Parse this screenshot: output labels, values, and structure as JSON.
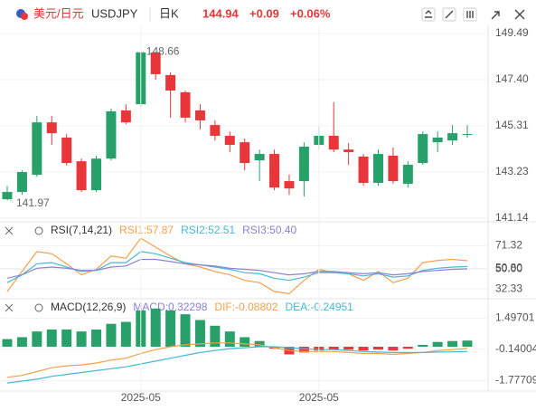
{
  "header": {
    "symbol_cn": "美元/日元",
    "symbol": "USDJPY",
    "period": "日K",
    "price": "144.94",
    "change": "+0.09",
    "change_pct": "+0.06%"
  },
  "chart_data": [
    {
      "type": "candlestick",
      "open": [
        141.99,
        142.32,
        143.1,
        145.47,
        144.78,
        143.71,
        142.4,
        143.83,
        146.01,
        146.29,
        148.63,
        147.61,
        146.83,
        146.01,
        145.35,
        144.86,
        144.57,
        143.75,
        144.04,
        142.81,
        142.81,
        144.45,
        144.86,
        144.24,
        143.92,
        142.73,
        143.96,
        142.69,
        143.63,
        144.57,
        144.65,
        144.92
      ],
      "high": [
        142.6,
        143.3,
        145.76,
        145.76,
        144.94,
        143.83,
        143.96,
        146.09,
        146.29,
        148.66,
        148.64,
        147.73,
        146.91,
        146.29,
        145.56,
        145.06,
        144.74,
        144.24,
        144.24,
        143.1,
        144.57,
        145.27,
        146.38,
        144.53,
        144.04,
        144.24,
        144.33,
        143.71,
        145.06,
        145.06,
        145.35,
        145.35
      ],
      "low": [
        141.97,
        142.19,
        143.01,
        144.45,
        143.51,
        142.32,
        142.32,
        143.75,
        145.39,
        146.17,
        147.4,
        145.68,
        145.47,
        145.15,
        144.65,
        144.12,
        143.3,
        142.81,
        142.4,
        142.19,
        142.11,
        144.24,
        144.12,
        143.55,
        142.6,
        142.6,
        142.69,
        142.52,
        143.55,
        144.12,
        144.45,
        144.78
      ],
      "close": [
        142.32,
        143.22,
        145.47,
        144.98,
        143.63,
        142.4,
        143.83,
        145.97,
        145.47,
        148.63,
        147.65,
        146.91,
        145.68,
        145.56,
        144.86,
        144.45,
        143.63,
        144.04,
        142.52,
        142.48,
        144.37,
        144.86,
        144.24,
        144.12,
        142.73,
        144.04,
        142.81,
        143.55,
        144.94,
        144.78,
        144.98,
        144.94
      ],
      "up_color": "#27a06a",
      "down_color": "#e8363a",
      "ylim": [
        140.97,
        149.86
      ],
      "yticks": [
        149.49,
        {
          "value": 147.4,
          "label": "147.40"
        },
        145.31,
        143.23,
        141.14
      ],
      "annotations": [
        {
          "value": 148.66,
          "label": "148.66"
        },
        {
          "value": 141.97,
          "label": "141.97"
        }
      ],
      "grid": true
    },
    {
      "type": "line",
      "title": "RSI(7,14,21)",
      "series": [
        {
          "name": "RSI1:57.87",
          "color": "#f5a04a",
          "values": [
            30,
            48,
            66,
            64,
            55,
            45,
            50,
            62,
            60,
            78,
            70,
            62,
            55,
            52,
            48,
            45,
            40,
            38,
            30,
            28,
            40,
            50,
            47,
            46,
            40,
            48,
            38,
            42,
            56,
            58,
            59,
            57.87
          ]
        },
        {
          "name": "RSI2:52.51",
          "color": "#45b8d6",
          "values": [
            38,
            45,
            55,
            56,
            52,
            48,
            49,
            56,
            56,
            66,
            64,
            60,
            56,
            54,
            52,
            50,
            47,
            46,
            42,
            40,
            43,
            47,
            47,
            46,
            44,
            46,
            43,
            44,
            49,
            51,
            52,
            52.51
          ]
        },
        {
          "name": "RSI3:50.40",
          "color": "#8a80d6",
          "values": [
            42,
            45,
            51,
            52,
            51,
            49,
            49,
            52,
            53,
            59,
            59,
            57,
            55,
            54,
            53,
            51,
            50,
            49,
            47,
            45,
            46,
            48,
            48,
            47,
            46,
            47,
            45,
            46,
            48,
            49,
            50,
            50.4
          ]
        }
      ],
      "ylim": [
        25.1,
        90.4
      ],
      "yticks": [
        71.32,
        {
          "value": 50.8,
          "label": "50.80"
        },
        {
          "value": 50,
          "label": "50.00"
        },
        32.33
      ],
      "grid": true
    },
    {
      "type": "macd",
      "title": "MACD(12,26,9)",
      "categories": [
        null,
        null,
        null,
        null,
        null,
        null,
        null,
        null,
        null,
        "2025-05",
        null,
        null,
        null,
        null,
        null,
        null,
        null,
        null,
        null,
        null,
        null,
        "2025-05",
        null,
        null,
        null,
        null,
        null,
        null,
        null,
        null,
        null,
        null
      ],
      "series": [
        {
          "name": "MACD:0.32298",
          "kind": "bar",
          "color": "#8a80d6",
          "positive_color": "#27a06a",
          "negative_color": "#e8363a",
          "values": [
            0.4,
            0.5,
            0.8,
            0.9,
            0.9,
            0.8,
            0.9,
            1.2,
            1.3,
            1.9,
            2.0,
            1.9,
            1.7,
            1.4,
            1.1,
            0.8,
            0.5,
            0.3,
            -0.1,
            -0.4,
            -0.3,
            -0.2,
            -0.15,
            -0.15,
            -0.2,
            -0.15,
            -0.2,
            -0.1,
            0.1,
            0.25,
            0.3,
            0.32298
          ]
        },
        {
          "name": "DIF:-0.08802",
          "kind": "line",
          "color": "#f5a04a",
          "values": [
            -1.6,
            -1.5,
            -1.3,
            -1.1,
            -1.0,
            -0.95,
            -0.85,
            -0.7,
            -0.6,
            -0.35,
            -0.15,
            0.0,
            0.1,
            0.15,
            0.2,
            0.2,
            0.15,
            0.1,
            -0.05,
            -0.2,
            -0.25,
            -0.25,
            -0.25,
            -0.3,
            -0.35,
            -0.35,
            -0.4,
            -0.35,
            -0.3,
            -0.2,
            -0.15,
            -0.08802
          ]
        },
        {
          "name": "DEA:-0.24951",
          "kind": "line",
          "color": "#45b8d6",
          "values": [
            -1.9,
            -1.8,
            -1.7,
            -1.55,
            -1.45,
            -1.35,
            -1.25,
            -1.15,
            -1.05,
            -0.9,
            -0.75,
            -0.6,
            -0.45,
            -0.3,
            -0.2,
            -0.1,
            -0.05,
            0.0,
            0.0,
            -0.05,
            -0.1,
            -0.15,
            -0.15,
            -0.2,
            -0.25,
            -0.28,
            -0.3,
            -0.3,
            -0.3,
            -0.28,
            -0.27,
            -0.24951
          ]
        }
      ],
      "ylim": [
        -2.32,
        2.37
      ],
      "yticks": [
        1.49701,
        -0.14004,
        -1.77709
      ],
      "grid": true
    }
  ]
}
